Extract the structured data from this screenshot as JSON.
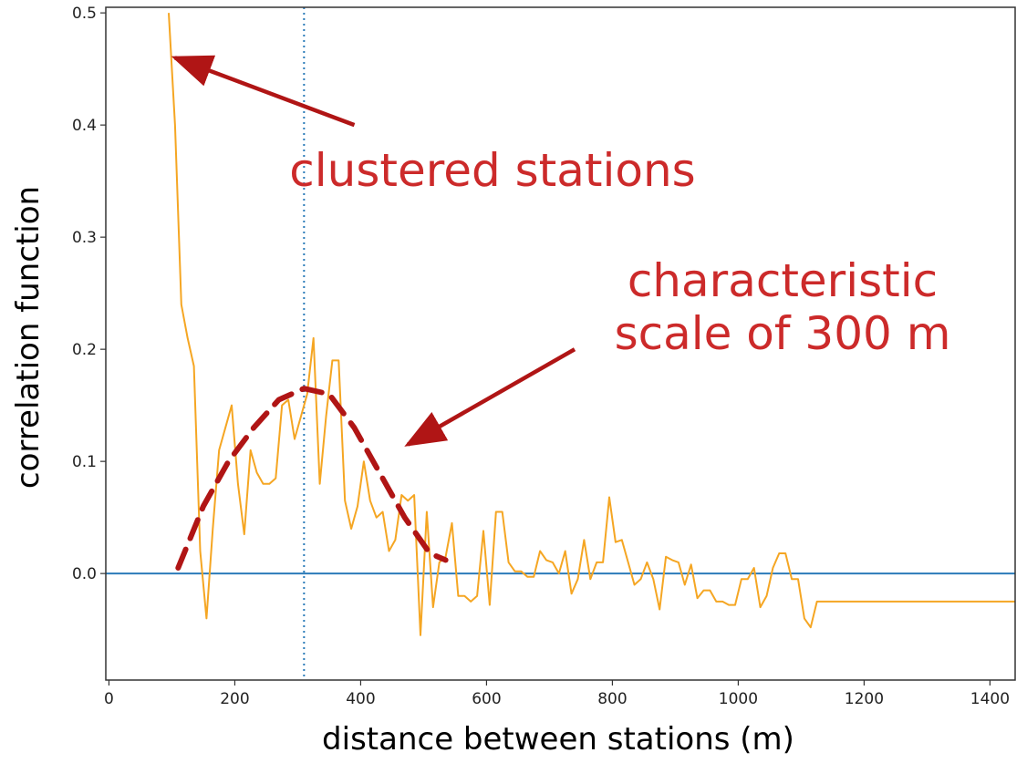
{
  "chart_data": {
    "type": "line",
    "xlabel": "distance between stations (m)",
    "ylabel": "correlation function",
    "xlim": [
      -5,
      1440
    ],
    "ylim": [
      -0.095,
      0.505
    ],
    "xticks": [
      0,
      200,
      400,
      600,
      800,
      1000,
      1200,
      1400
    ],
    "yticks": [
      0.0,
      0.1,
      0.2,
      0.3,
      0.4,
      0.5
    ],
    "xtick_labels": [
      "0",
      "200",
      "400",
      "600",
      "800",
      "1000",
      "1200",
      "1400"
    ],
    "ytick_labels": [
      "0.0",
      "0.1",
      "0.2",
      "0.3",
      "0.4",
      "0.5"
    ],
    "grid": false,
    "series": [
      {
        "style": "solid",
        "color": "#f5a623",
        "x": [
          95,
          105,
          115,
          125,
          135,
          145,
          155,
          165,
          175,
          185,
          195,
          205,
          215,
          225,
          235,
          245,
          255,
          265,
          275,
          285,
          295,
          305,
          315,
          325,
          335,
          345,
          355,
          365,
          375,
          385,
          395,
          405,
          415,
          425,
          435,
          445,
          455,
          465,
          475,
          485,
          495,
          505,
          515,
          525,
          535,
          545,
          555,
          565,
          575,
          585,
          595,
          605,
          615,
          625,
          635,
          645,
          655,
          665,
          675,
          685,
          695,
          705,
          715,
          725,
          735,
          745,
          755,
          765,
          775,
          785,
          795,
          805,
          815,
          825,
          835,
          845,
          855,
          865,
          875,
          885,
          895,
          905,
          915,
          925,
          935,
          945,
          955,
          965,
          975,
          985,
          995,
          1005,
          1015,
          1025,
          1035,
          1045,
          1055,
          1065,
          1075,
          1085,
          1095,
          1105,
          1115,
          1125,
          1135,
          1145,
          1155,
          1165,
          1175,
          1185,
          1195,
          1205,
          1215,
          1225,
          1235,
          1245,
          1255,
          1265,
          1275,
          1285,
          1295,
          1305,
          1315,
          1325,
          1335,
          1345,
          1355,
          1365,
          1375,
          1385,
          1395,
          1405,
          1415,
          1425,
          1435,
          1440
        ],
        "y": [
          0.5,
          0.4,
          0.24,
          0.21,
          0.185,
          0.02,
          -0.04,
          0.04,
          0.11,
          0.13,
          0.15,
          0.08,
          0.035,
          0.11,
          0.09,
          0.08,
          0.08,
          0.085,
          0.15,
          0.155,
          0.12,
          0.14,
          0.16,
          0.21,
          0.08,
          0.14,
          0.19,
          0.19,
          0.065,
          0.04,
          0.06,
          0.1,
          0.065,
          0.05,
          0.055,
          0.02,
          0.03,
          0.07,
          0.065,
          0.07,
          -0.055,
          0.055,
          -0.03,
          0.01,
          0.015,
          0.045,
          -0.02,
          -0.02,
          -0.025,
          -0.02,
          0.038,
          -0.028,
          0.055,
          0.055,
          0.01,
          0.002,
          0.002,
          -0.003,
          -0.003,
          0.02,
          0.012,
          0.01,
          0.0,
          0.02,
          -0.018,
          -0.005,
          0.03,
          -0.005,
          0.01,
          0.01,
          0.068,
          0.028,
          0.03,
          0.01,
          -0.01,
          -0.005,
          0.01,
          -0.005,
          -0.032,
          0.015,
          0.012,
          0.01,
          -0.01,
          0.008,
          -0.022,
          -0.015,
          -0.015,
          -0.025,
          -0.025,
          -0.028,
          -0.028,
          -0.005,
          -0.005,
          0.005,
          -0.03,
          -0.02,
          0.005,
          0.018,
          0.018,
          -0.005,
          -0.005,
          -0.04,
          -0.048,
          -0.025,
          -0.025,
          -0.025,
          -0.025,
          -0.025,
          -0.025,
          -0.025,
          -0.025,
          -0.025,
          -0.025,
          -0.025,
          -0.025,
          -0.025,
          -0.025,
          -0.025,
          -0.025,
          -0.025,
          -0.025,
          -0.025,
          -0.025,
          -0.025,
          -0.025,
          -0.025,
          -0.025,
          -0.025,
          -0.025,
          -0.025,
          -0.025,
          -0.025,
          -0.025,
          -0.025,
          -0.025,
          -0.025
        ]
      },
      {
        "style": "dashed",
        "color": "#b01515",
        "x": [
          110,
          150,
          190,
          230,
          270,
          310,
          350,
          390,
          430,
          470,
          510,
          535
        ],
        "y": [
          0.005,
          0.06,
          0.1,
          0.13,
          0.155,
          0.165,
          0.16,
          0.13,
          0.09,
          0.05,
          0.018,
          0.012
        ]
      }
    ],
    "hlines": [
      {
        "y": 0.0,
        "color": "#2b7bb9"
      }
    ],
    "vlines": [
      {
        "x": 310,
        "color": "#2b7bb9",
        "style": "dotted"
      }
    ],
    "annotations": [
      {
        "lines": [
          "clustered stations"
        ],
        "color": "#cc2a2a",
        "arrow_from": [
          390,
          0.4
        ],
        "arrow_to": [
          105,
          0.46
        ]
      },
      {
        "lines": [
          "characteristic",
          "scale of 300 m"
        ],
        "color": "#cc2a2a",
        "arrow_from": [
          740,
          0.2
        ],
        "arrow_to": [
          475,
          0.115
        ]
      }
    ]
  }
}
